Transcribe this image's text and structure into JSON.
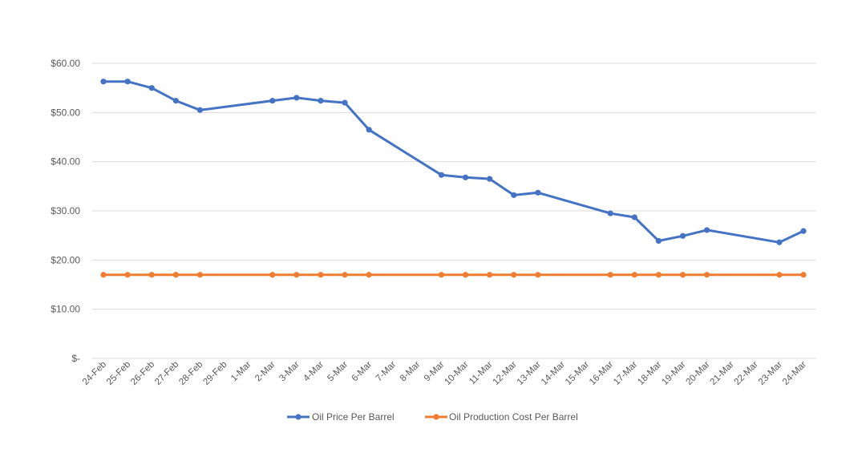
{
  "chart_data": {
    "type": "line",
    "title": "",
    "xlabel": "",
    "ylabel": "",
    "ylim": [
      0,
      60
    ],
    "grid": true,
    "legend_position": "bottom",
    "y_ticks": [
      {
        "value": 0,
        "label": "$-"
      },
      {
        "value": 10,
        "label": "$10.00"
      },
      {
        "value": 20,
        "label": "$20.00"
      },
      {
        "value": 30,
        "label": "$30.00"
      },
      {
        "value": 40,
        "label": "$40.00"
      },
      {
        "value": 50,
        "label": "$50.00"
      },
      {
        "value": 60,
        "label": "$60.00"
      }
    ],
    "categories": [
      "24-Feb",
      "25-Feb",
      "26-Feb",
      "27-Feb",
      "28-Feb",
      "29-Feb",
      "1-Mar",
      "2-Mar",
      "3-Mar",
      "4-Mar",
      "5-Mar",
      "6-Mar",
      "7-Mar",
      "8-Mar",
      "9-Mar",
      "10-Mar",
      "11-Mar",
      "12-Mar",
      "13-Mar",
      "14-Mar",
      "15-Mar",
      "16-Mar",
      "17-Mar",
      "18-Mar",
      "19-Mar",
      "20-Mar",
      "21-Mar",
      "22-Mar",
      "23-Mar",
      "24-Mar"
    ],
    "series": [
      {
        "name": "Oil Price Per Barrel",
        "color": "#4472C4",
        "values": [
          56.3,
          56.3,
          55.0,
          52.4,
          50.5,
          null,
          null,
          52.4,
          53.0,
          52.4,
          52.0,
          46.5,
          null,
          null,
          37.3,
          36.8,
          36.5,
          33.2,
          33.7,
          null,
          null,
          29.5,
          28.7,
          23.9,
          24.9,
          26.1,
          null,
          null,
          23.6,
          25.9
        ]
      },
      {
        "name": "Oil Production Cost Per Barrel",
        "color": "#ED7D31",
        "values": [
          17.0,
          17.0,
          17.0,
          17.0,
          17.0,
          null,
          null,
          17.0,
          17.0,
          17.0,
          17.0,
          17.0,
          null,
          null,
          17.0,
          17.0,
          17.0,
          17.0,
          17.0,
          null,
          null,
          17.0,
          17.0,
          17.0,
          17.0,
          17.0,
          null,
          null,
          17.0,
          17.0
        ]
      }
    ]
  }
}
